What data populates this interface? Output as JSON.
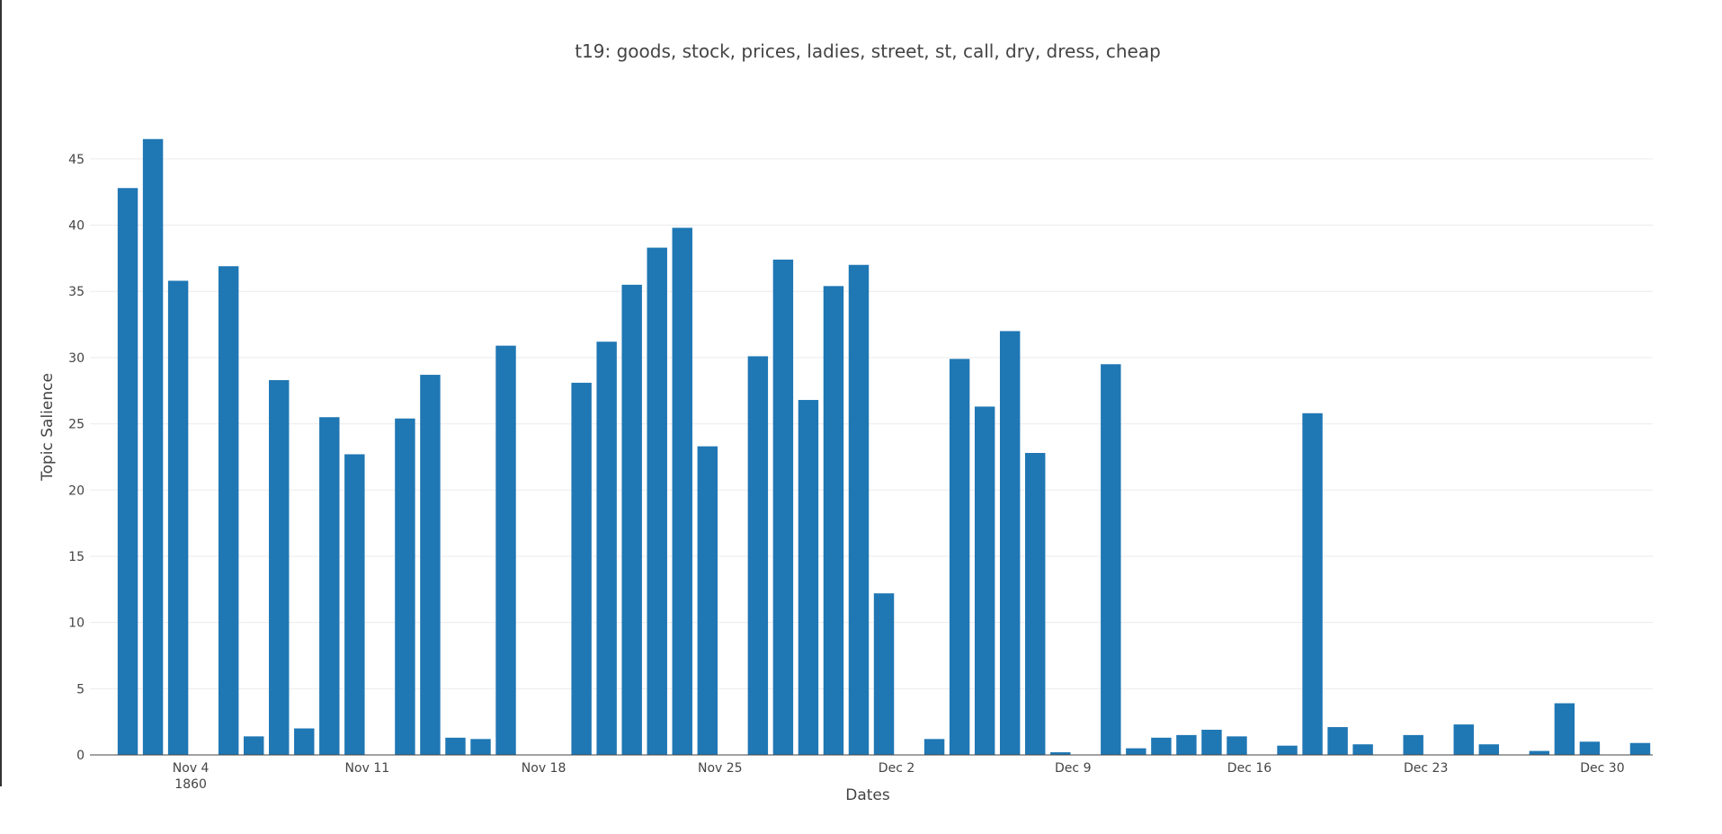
{
  "chart_data": {
    "type": "bar",
    "title": "t19: goods, stock, prices, ladies, street, st, call, dry, dress, cheap",
    "xlabel": "Dates",
    "ylabel": "Topic Salience",
    "year_label": "1860",
    "ylim": [
      0,
      47.5
    ],
    "xlim": [
      "1860-10-31",
      "1860-12-31"
    ],
    "grid": true,
    "bar_color": "#1f77b4",
    "y_ticks": [
      0,
      5,
      10,
      15,
      20,
      25,
      30,
      35,
      40,
      45
    ],
    "x_ticks": [
      {
        "date": "1860-11-04",
        "label": "Nov 4"
      },
      {
        "date": "1860-11-11",
        "label": "Nov 11"
      },
      {
        "date": "1860-11-18",
        "label": "Nov 18"
      },
      {
        "date": "1860-11-25",
        "label": "Nov 25"
      },
      {
        "date": "1860-12-02",
        "label": "Dec 2"
      },
      {
        "date": "1860-12-09",
        "label": "Dec 9"
      },
      {
        "date": "1860-12-16",
        "label": "Dec 16"
      },
      {
        "date": "1860-12-23",
        "label": "Dec 23"
      },
      {
        "date": "1860-12-30",
        "label": "Dec 30"
      }
    ],
    "x": [
      "1860-11-01",
      "1860-11-02",
      "1860-11-03",
      "1860-11-05",
      "1860-11-06",
      "1860-11-07",
      "1860-11-08",
      "1860-11-09",
      "1860-11-10",
      "1860-11-12",
      "1860-11-13",
      "1860-11-14",
      "1860-11-15",
      "1860-11-16",
      "1860-11-19",
      "1860-11-20",
      "1860-11-21",
      "1860-11-22",
      "1860-11-23",
      "1860-11-24",
      "1860-11-26",
      "1860-11-27",
      "1860-11-28",
      "1860-11-29",
      "1860-11-30",
      "1860-12-01",
      "1860-12-03",
      "1860-12-04",
      "1860-12-05",
      "1860-12-06",
      "1860-12-07",
      "1860-12-08",
      "1860-12-10",
      "1860-12-11",
      "1860-12-12",
      "1860-12-13",
      "1860-12-14",
      "1860-12-15",
      "1860-12-17",
      "1860-12-18",
      "1860-12-19",
      "1860-12-20",
      "1860-12-22",
      "1860-12-24",
      "1860-12-25",
      "1860-12-27",
      "1860-12-28",
      "1860-12-29",
      "1860-12-31"
    ],
    "values": [
      42.8,
      46.5,
      35.8,
      36.9,
      1.4,
      28.3,
      2.0,
      25.5,
      22.7,
      25.4,
      28.7,
      1.3,
      1.2,
      30.9,
      28.1,
      31.2,
      35.5,
      38.3,
      39.8,
      23.3,
      30.1,
      37.4,
      26.8,
      35.4,
      37.0,
      12.2,
      1.2,
      29.9,
      26.3,
      32.0,
      22.8,
      0.2,
      29.5,
      0.5,
      1.3,
      1.5,
      1.9,
      1.4,
      0.7,
      25.8,
      2.1,
      0.8,
      1.5,
      2.3,
      0.8,
      0.3,
      3.9,
      1.0,
      0.9
    ]
  }
}
